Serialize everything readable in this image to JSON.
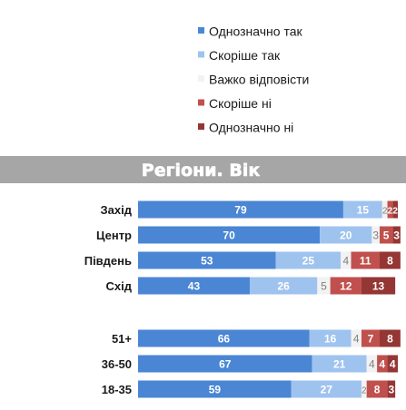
{
  "chart_data": {
    "type": "bar",
    "stacked": true,
    "orientation": "horizontal",
    "title": "Регіони. Вік",
    "categories": [
      "Захід",
      "Центр",
      "Південь",
      "Схід",
      "51+",
      "36-50",
      "18-35"
    ],
    "series": [
      {
        "name": "Однозначно так",
        "color": "#4a86d4",
        "values": [
          79,
          70,
          53,
          43,
          66,
          67,
          59
        ]
      },
      {
        "name": "Скоріше так",
        "color": "#9fc3ef",
        "values": [
          15,
          20,
          25,
          26,
          16,
          21,
          27
        ]
      },
      {
        "name": "Важко відповісти",
        "color": "#f2f2f2",
        "values": [
          2,
          3,
          4,
          5,
          4,
          4,
          2
        ]
      },
      {
        "name": "Скоріше ні",
        "color": "#c0504d",
        "values": [
          2,
          5,
          11,
          12,
          7,
          4,
          8
        ]
      },
      {
        "name": "Однозначно ні",
        "color": "#943634",
        "values": [
          2,
          3,
          8,
          13,
          8,
          4,
          3
        ]
      }
    ],
    "xlim": [
      0,
      100
    ],
    "legend_position": "top-center",
    "grid": false
  },
  "colors": {
    "banner_background": "#a6a6a6",
    "value_label_light": "#ffffff",
    "value_label_dark": "#7f7f7f"
  }
}
